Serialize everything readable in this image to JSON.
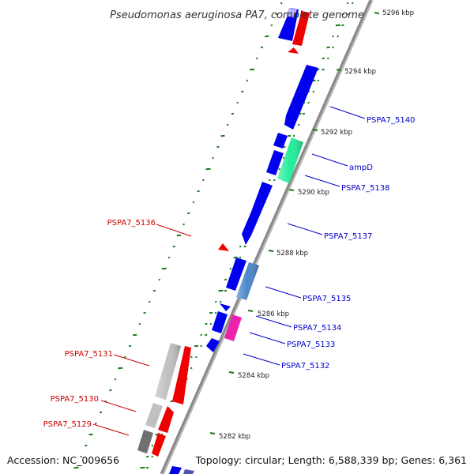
{
  "title": "Pseudomonas aeruginosa PA7, complete genome",
  "footer": {
    "accession": "Accession: NC_009656",
    "summary": "Topology: circular; Length: 6,588,339 bp; Genes: 6,361"
  },
  "colors": {
    "backbone": "#808080",
    "forward_label": "#0000cc",
    "reverse_label": "#cc0000",
    "gc_tick": "#1a7a1a"
  },
  "ticks": [
    {
      "label": "5296 kbp"
    },
    {
      "label": "5294 kbp"
    },
    {
      "label": "5292 kbp"
    },
    {
      "label": "5290 kbp"
    },
    {
      "label": "5288 kbp"
    },
    {
      "label": "5286 kbp"
    },
    {
      "label": "5284 kbp"
    },
    {
      "label": "5282 kbp"
    }
  ],
  "gene_labels": [
    {
      "text": "PSPA7_5140",
      "strand": "forward"
    },
    {
      "text": "ampD",
      "strand": "forward"
    },
    {
      "text": "PSPA7_5138",
      "strand": "forward"
    },
    {
      "text": "PSPA7_5137",
      "strand": "forward"
    },
    {
      "text": "PSPA7_5136",
      "strand": "reverse"
    },
    {
      "text": "PSPA7_5135",
      "strand": "forward"
    },
    {
      "text": "PSPA7_5134",
      "strand": "forward"
    },
    {
      "text": "PSPA7_5133",
      "strand": "forward"
    },
    {
      "text": "PSPA7_5132",
      "strand": "forward"
    },
    {
      "text": "PSPA7_5131",
      "strand": "reverse"
    },
    {
      "text": "PSPA7_5130",
      "strand": "reverse"
    },
    {
      "text": "PSPA7_5129",
      "strand": "reverse"
    }
  ]
}
